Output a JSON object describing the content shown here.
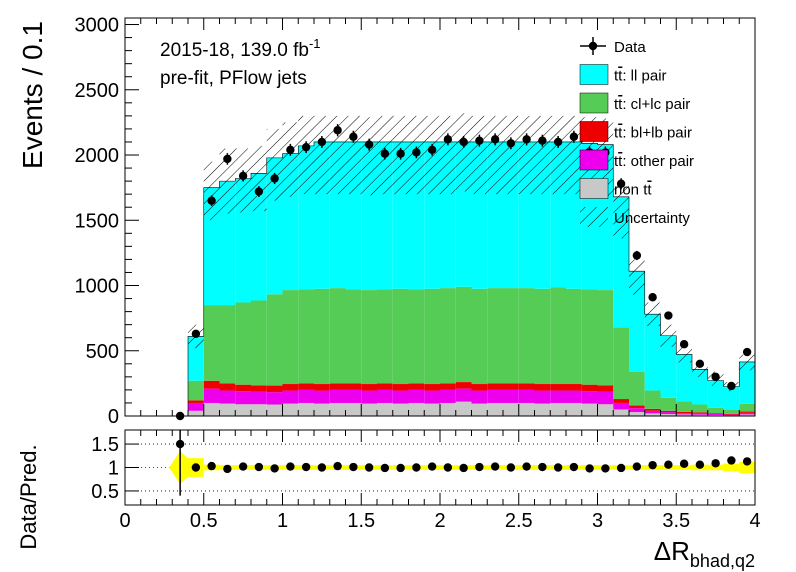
{
  "chart_data": {
    "type": "bar",
    "upper_panel": {
      "ylabel": "Events / 0.1",
      "ylim": [
        0,
        3050
      ],
      "yticks": [
        0,
        500,
        1000,
        1500,
        2000,
        2500,
        3000
      ],
      "ytick_labels": [
        "0",
        "500",
        "1000",
        "1500",
        "2000",
        "2500",
        "3000"
      ],
      "annotation_line1": "2015-18, 139.0 fb",
      "annotation_line1_sup": "-1",
      "annotation_line2": "pre-fit, PFlow jets"
    },
    "lower_panel": {
      "ylabel": "Data/Pred.",
      "ylim": [
        0.2,
        1.8
      ],
      "yticks": [
        0.5,
        1,
        1.5
      ],
      "ytick_labels": [
        "0.5",
        "1",
        "1.5"
      ],
      "grid_lines": [
        0.5,
        1.0,
        1.5
      ]
    },
    "x": {
      "label_main": "ΔR",
      "label_sub": "bhad,q2",
      "xlim": [
        0,
        4
      ],
      "bin_width": 0.1,
      "xticks": [
        0,
        0.5,
        1,
        1.5,
        2,
        2.5,
        3,
        3.5,
        4
      ],
      "xtick_labels": [
        "0",
        "0.5",
        "1",
        "1.5",
        "2",
        "2.5",
        "3",
        "3.5",
        "4"
      ]
    },
    "bins": [
      0.4,
      0.5,
      0.6,
      0.7,
      0.8,
      0.9,
      1.0,
      1.1,
      1.2,
      1.3,
      1.4,
      1.5,
      1.6,
      1.7,
      1.8,
      1.9,
      2.0,
      2.1,
      2.2,
      2.3,
      2.4,
      2.5,
      2.6,
      2.7,
      2.8,
      2.9,
      3.0,
      3.1,
      3.2,
      3.3,
      3.4,
      3.5,
      3.6,
      3.7,
      3.8,
      3.9
    ],
    "stack": [
      {
        "name": "non tt̄",
        "label_main": "non t",
        "label_bar": "t",
        "color": "#c8c8c8",
        "values": [
          40,
          100,
          95,
          90,
          90,
          88,
          95,
          100,
          95,
          100,
          100,
          95,
          100,
          95,
          100,
          95,
          100,
          110,
          95,
          100,
          100,
          100,
          95,
          100,
          100,
          95,
          90,
          50,
          30,
          20,
          15,
          12,
          10,
          8,
          5,
          12
        ]
      },
      {
        "name": "tt̄: other pair",
        "label_main": "t",
        "label_bar": "t",
        "label_suffix": ": other pair",
        "color": "#ee00ee",
        "values": [
          60,
          110,
          100,
          100,
          95,
          95,
          100,
          100,
          100,
          100,
          100,
          100,
          100,
          100,
          100,
          100,
          100,
          100,
          100,
          100,
          100,
          100,
          100,
          95,
          95,
          95,
          95,
          50,
          30,
          20,
          15,
          10,
          10,
          8,
          6,
          12
        ]
      },
      {
        "name": "tt̄: bl+lb pair",
        "label_main": "t",
        "label_bar": "t",
        "label_suffix": ": bl+lb pair",
        "color": "#ee0000",
        "values": [
          20,
          60,
          55,
          50,
          50,
          50,
          50,
          50,
          50,
          50,
          50,
          50,
          50,
          50,
          50,
          50,
          50,
          50,
          50,
          50,
          50,
          50,
          50,
          50,
          50,
          50,
          50,
          30,
          20,
          15,
          10,
          10,
          8,
          6,
          5,
          10
        ]
      },
      {
        "name": "tt̄: cl+lc pair",
        "label_main": "t",
        "label_bar": "t",
        "label_suffix": ": cl+lc pair",
        "color": "#55cc55",
        "values": [
          150,
          580,
          600,
          630,
          650,
          700,
          720,
          720,
          730,
          730,
          720,
          720,
          720,
          730,
          720,
          730,
          730,
          730,
          730,
          730,
          730,
          730,
          730,
          740,
          730,
          730,
          730,
          550,
          260,
          140,
          100,
          80,
          60,
          40,
          30,
          60
        ]
      },
      {
        "name": "tt̄: ll pair",
        "label_main": "t",
        "label_bar": "t",
        "label_suffix": ": ll pair",
        "color": "#00ffff",
        "values": [
          340,
          900,
          950,
          950,
          975,
          1045,
          1045,
          1100,
          1125,
          1120,
          1130,
          1135,
          1130,
          1125,
          1130,
          1125,
          1120,
          1110,
          1125,
          1120,
          1120,
          1120,
          1125,
          1115,
          1125,
          1120,
          1115,
          1000,
          770,
          585,
          475,
          360,
          270,
          210,
          180,
          320
        ]
      }
    ],
    "data": {
      "name": "Data",
      "values": [
        630,
        1650,
        1970,
        1840,
        1720,
        1820,
        2040,
        2060,
        2100,
        2190,
        2140,
        2080,
        2010,
        2010,
        2020,
        2040,
        2120,
        2100,
        2110,
        2120,
        2090,
        2120,
        2110,
        2100,
        2140,
        2020,
        2020,
        1780,
        1230,
        910,
        770,
        550,
        400,
        300,
        230,
        490
      ],
      "first_point": {
        "x": 0.35,
        "y": 0
      }
    },
    "uncertainty": {
      "name": "Uncertainty",
      "upper": [
        700,
        1950,
        2050,
        2050,
        2070,
        2200,
        2250,
        2300,
        2300,
        2300,
        2300,
        2290,
        2300,
        2300,
        2300,
        2300,
        2300,
        2320,
        2300,
        2300,
        2300,
        2300,
        2300,
        2300,
        2300,
        2290,
        2280,
        1800,
        1200,
        870,
        700,
        560,
        420,
        340,
        260,
        470
      ],
      "lower": [
        520,
        1500,
        1550,
        1560,
        1570,
        1650,
        1680,
        1700,
        1700,
        1700,
        1700,
        1690,
        1700,
        1700,
        1700,
        1700,
        1700,
        1720,
        1700,
        1700,
        1700,
        1700,
        1700,
        1700,
        1700,
        1690,
        1680,
        1360,
        930,
        690,
        530,
        410,
        300,
        230,
        190,
        350
      ]
    },
    "ratio": {
      "values": [
        1.0,
        1.03,
        0.97,
        1.02,
        1.01,
        0.98,
        1.02,
        1.01,
        1.0,
        1.03,
        1.01,
        1.0,
        0.99,
        0.99,
        1.0,
        1.02,
        1.0,
        0.99,
        1.01,
        1.02,
        1.0,
        1.02,
        1.01,
        1.0,
        1.01,
        0.98,
        0.98,
        0.99,
        1.02,
        1.05,
        1.06,
        1.08,
        1.06,
        1.09,
        1.15,
        1.13
      ],
      "first_point": {
        "x": 0.35,
        "y": 1.5,
        "err_low": 0.4,
        "err_high": 1.8
      },
      "band_half_width": [
        0.2,
        0.06,
        0.05,
        0.05,
        0.05,
        0.05,
        0.05,
        0.05,
        0.05,
        0.05,
        0.05,
        0.05,
        0.05,
        0.05,
        0.05,
        0.05,
        0.05,
        0.05,
        0.05,
        0.05,
        0.05,
        0.05,
        0.05,
        0.05,
        0.05,
        0.05,
        0.05,
        0.05,
        0.05,
        0.05,
        0.05,
        0.05,
        0.06,
        0.06,
        0.08,
        0.12
      ],
      "band_color": "#ffff00"
    },
    "legend": {
      "placement": "top-right",
      "entries": [
        {
          "key": "data",
          "label": "Data"
        },
        {
          "key": "ll",
          "main": "t",
          "bar": "t",
          "suffix": ": ll pair",
          "color": "#00ffff"
        },
        {
          "key": "cl",
          "main": "t",
          "bar": "t",
          "suffix": ": cl+lc pair",
          "color": "#55cc55"
        },
        {
          "key": "bl",
          "main": "t",
          "bar": "t",
          "suffix": ": bl+lb pair",
          "color": "#ee0000"
        },
        {
          "key": "other",
          "main": "t",
          "bar": "t",
          "suffix": ": other pair",
          "color": "#ee00ee"
        },
        {
          "key": "non",
          "main": "non t",
          "bar": "t",
          "suffix": "",
          "color": "#c8c8c8"
        },
        {
          "key": "unc",
          "label": "Uncertainty"
        }
      ]
    }
  }
}
